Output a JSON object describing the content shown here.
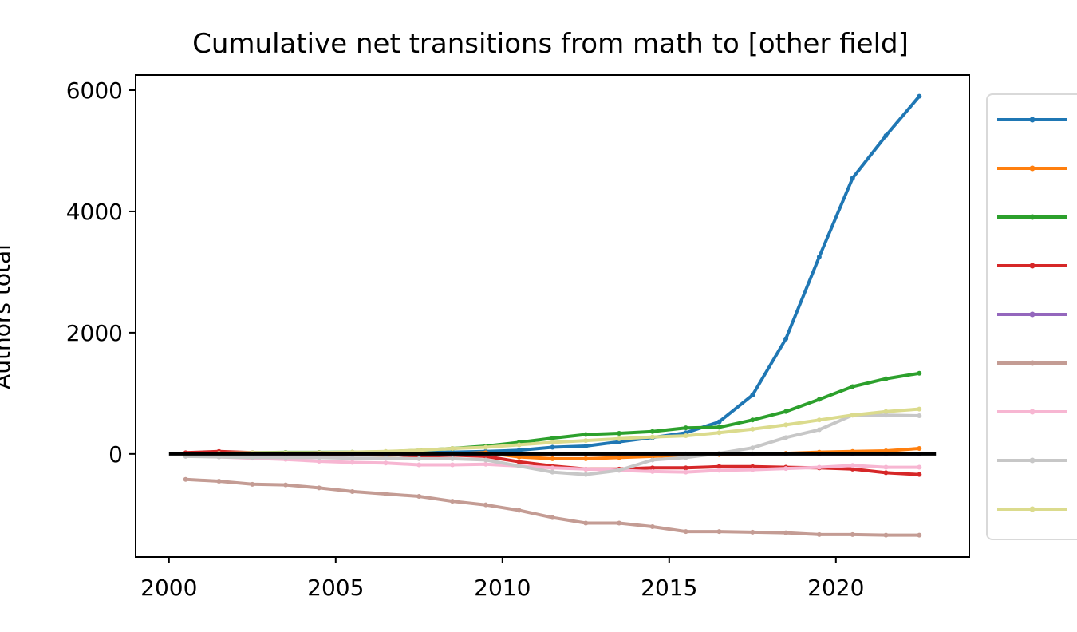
{
  "chart_data": {
    "type": "line",
    "title": "Cumulative net transitions from math to [other field]",
    "xlabel": "",
    "ylabel": "Authors total",
    "xlim": [
      1999,
      2024
    ],
    "ylim": [
      -1700,
      6250
    ],
    "x_ticks": [
      2000,
      2005,
      2010,
      2015,
      2020
    ],
    "x_tick_labels": [
      "2000",
      "2005",
      "2010",
      "2015",
      "2020"
    ],
    "y_ticks": [
      0,
      2000,
      4000,
      6000
    ],
    "y_tick_labels": [
      "0",
      "2000",
      "4000",
      "6000"
    ],
    "grid": false,
    "legend": "right, outside plot area (labels not legible)",
    "reference_line": {
      "y": 0,
      "x_from": 2000,
      "x_to": 2023,
      "color": "#000000"
    },
    "x": [
      2000.5,
      2001.5,
      2002.5,
      2003.5,
      2004.5,
      2005.5,
      2006.5,
      2007.5,
      2008.5,
      2009.5,
      2010.5,
      2011.5,
      2012.5,
      2013.5,
      2014.5,
      2015.5,
      2016.5,
      2017.5,
      2018.5,
      2019.5,
      2020.5,
      2021.5,
      2022.5
    ],
    "series": [
      {
        "color": "#1f77b4",
        "values": [
          10,
          20,
          15,
          10,
          15,
          20,
          15,
          20,
          30,
          40,
          60,
          110,
          130,
          200,
          270,
          350,
          530,
          970,
          1900,
          3250,
          4550,
          5250,
          5900
        ]
      },
      {
        "color": "#ff7f0e",
        "values": [
          0,
          0,
          5,
          5,
          0,
          -10,
          -20,
          -10,
          0,
          20,
          -50,
          -80,
          -80,
          -60,
          -40,
          -20,
          -10,
          0,
          10,
          30,
          40,
          50,
          90
        ]
      },
      {
        "color": "#2ca02c",
        "values": [
          10,
          20,
          20,
          25,
          25,
          30,
          35,
          60,
          90,
          130,
          190,
          260,
          320,
          340,
          370,
          430,
          440,
          560,
          700,
          900,
          1110,
          1240,
          1330
        ]
      },
      {
        "color": "#d62728",
        "values": [
          20,
          40,
          20,
          10,
          20,
          10,
          0,
          -40,
          -20,
          -40,
          -130,
          -200,
          -250,
          -250,
          -230,
          -230,
          -210,
          -210,
          -220,
          -230,
          -250,
          -310,
          -340
        ]
      },
      {
        "color": "#9467bd",
        "values": [
          0,
          0,
          0,
          0,
          0,
          0,
          0,
          0,
          0,
          0,
          0,
          0,
          0,
          0,
          0,
          0,
          0,
          0,
          0,
          0,
          0,
          0,
          0
        ]
      },
      {
        "color": "#c49c94",
        "values": [
          -420,
          -450,
          -500,
          -510,
          -560,
          -620,
          -660,
          -700,
          -780,
          -840,
          -930,
          -1050,
          -1140,
          -1140,
          -1200,
          -1280,
          -1280,
          -1290,
          -1300,
          -1330,
          -1330,
          -1340,
          -1340
        ]
      },
      {
        "color": "#f7b6d2",
        "values": [
          -30,
          -50,
          -70,
          -90,
          -120,
          -140,
          -150,
          -180,
          -180,
          -170,
          -200,
          -230,
          -250,
          -270,
          -290,
          -300,
          -270,
          -260,
          -240,
          -220,
          -190,
          -220,
          -220
        ]
      },
      {
        "color": "#c7c7c7",
        "values": [
          -40,
          -50,
          -60,
          -60,
          -60,
          -70,
          -70,
          -80,
          -80,
          -100,
          -200,
          -300,
          -340,
          -270,
          -100,
          -60,
          10,
          100,
          270,
          400,
          640,
          640,
          630
        ]
      },
      {
        "color": "#dbdb8d",
        "values": [
          0,
          10,
          20,
          20,
          20,
          30,
          40,
          60,
          90,
          110,
          150,
          190,
          220,
          250,
          280,
          300,
          350,
          410,
          480,
          560,
          640,
          700,
          740
        ]
      }
    ]
  }
}
